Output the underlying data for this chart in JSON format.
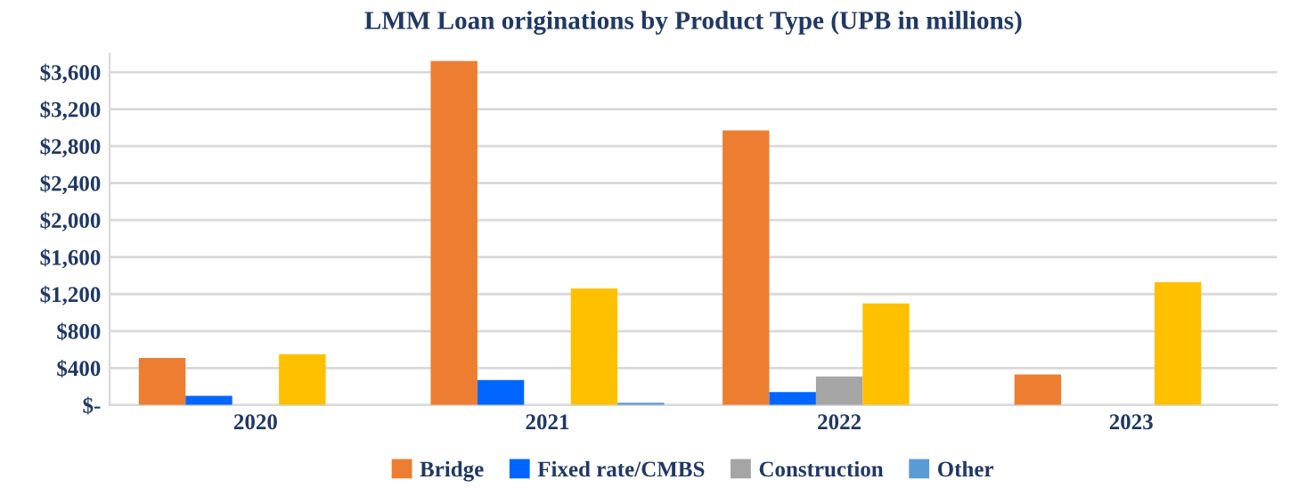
{
  "chart_data": {
    "type": "bar",
    "title": "LMM Loan originations by Product Type (UPB in millions)",
    "categories": [
      "2020",
      "2021",
      "2022",
      "2023"
    ],
    "series": [
      {
        "name": "Bridge",
        "color": "#ed7d31",
        "values": [
          510,
          3720,
          2970,
          330
        ]
      },
      {
        "name": "Fixed rate/CMBS",
        "color": "#0066ff",
        "values": [
          100,
          270,
          140,
          0
        ]
      },
      {
        "name": "Construction",
        "color": "#a5a5a5",
        "values": [
          0,
          0,
          310,
          0
        ]
      },
      {
        "color": "#ffc000",
        "values": [
          550,
          1260,
          1100,
          1330
        ]
      },
      {
        "name": "Other",
        "color": "#5b9bd5",
        "values": [
          0,
          25,
          0,
          0
        ]
      }
    ],
    "ylim": [
      0,
      3800
    ],
    "yticks": [
      {
        "value": 0,
        "label": "$-"
      },
      {
        "value": 400,
        "label": "$400"
      },
      {
        "value": 800,
        "label": "$800"
      },
      {
        "value": 1200,
        "label": "$1,200"
      },
      {
        "value": 1600,
        "label": "$1,600"
      },
      {
        "value": 2000,
        "label": "$2,000"
      },
      {
        "value": 2400,
        "label": "$2,400"
      },
      {
        "value": 2800,
        "label": "$2,800"
      },
      {
        "value": 3200,
        "label": "$3,200"
      },
      {
        "value": 3600,
        "label": "$3,600"
      }
    ],
    "grid": "y",
    "legend": "bottom"
  }
}
